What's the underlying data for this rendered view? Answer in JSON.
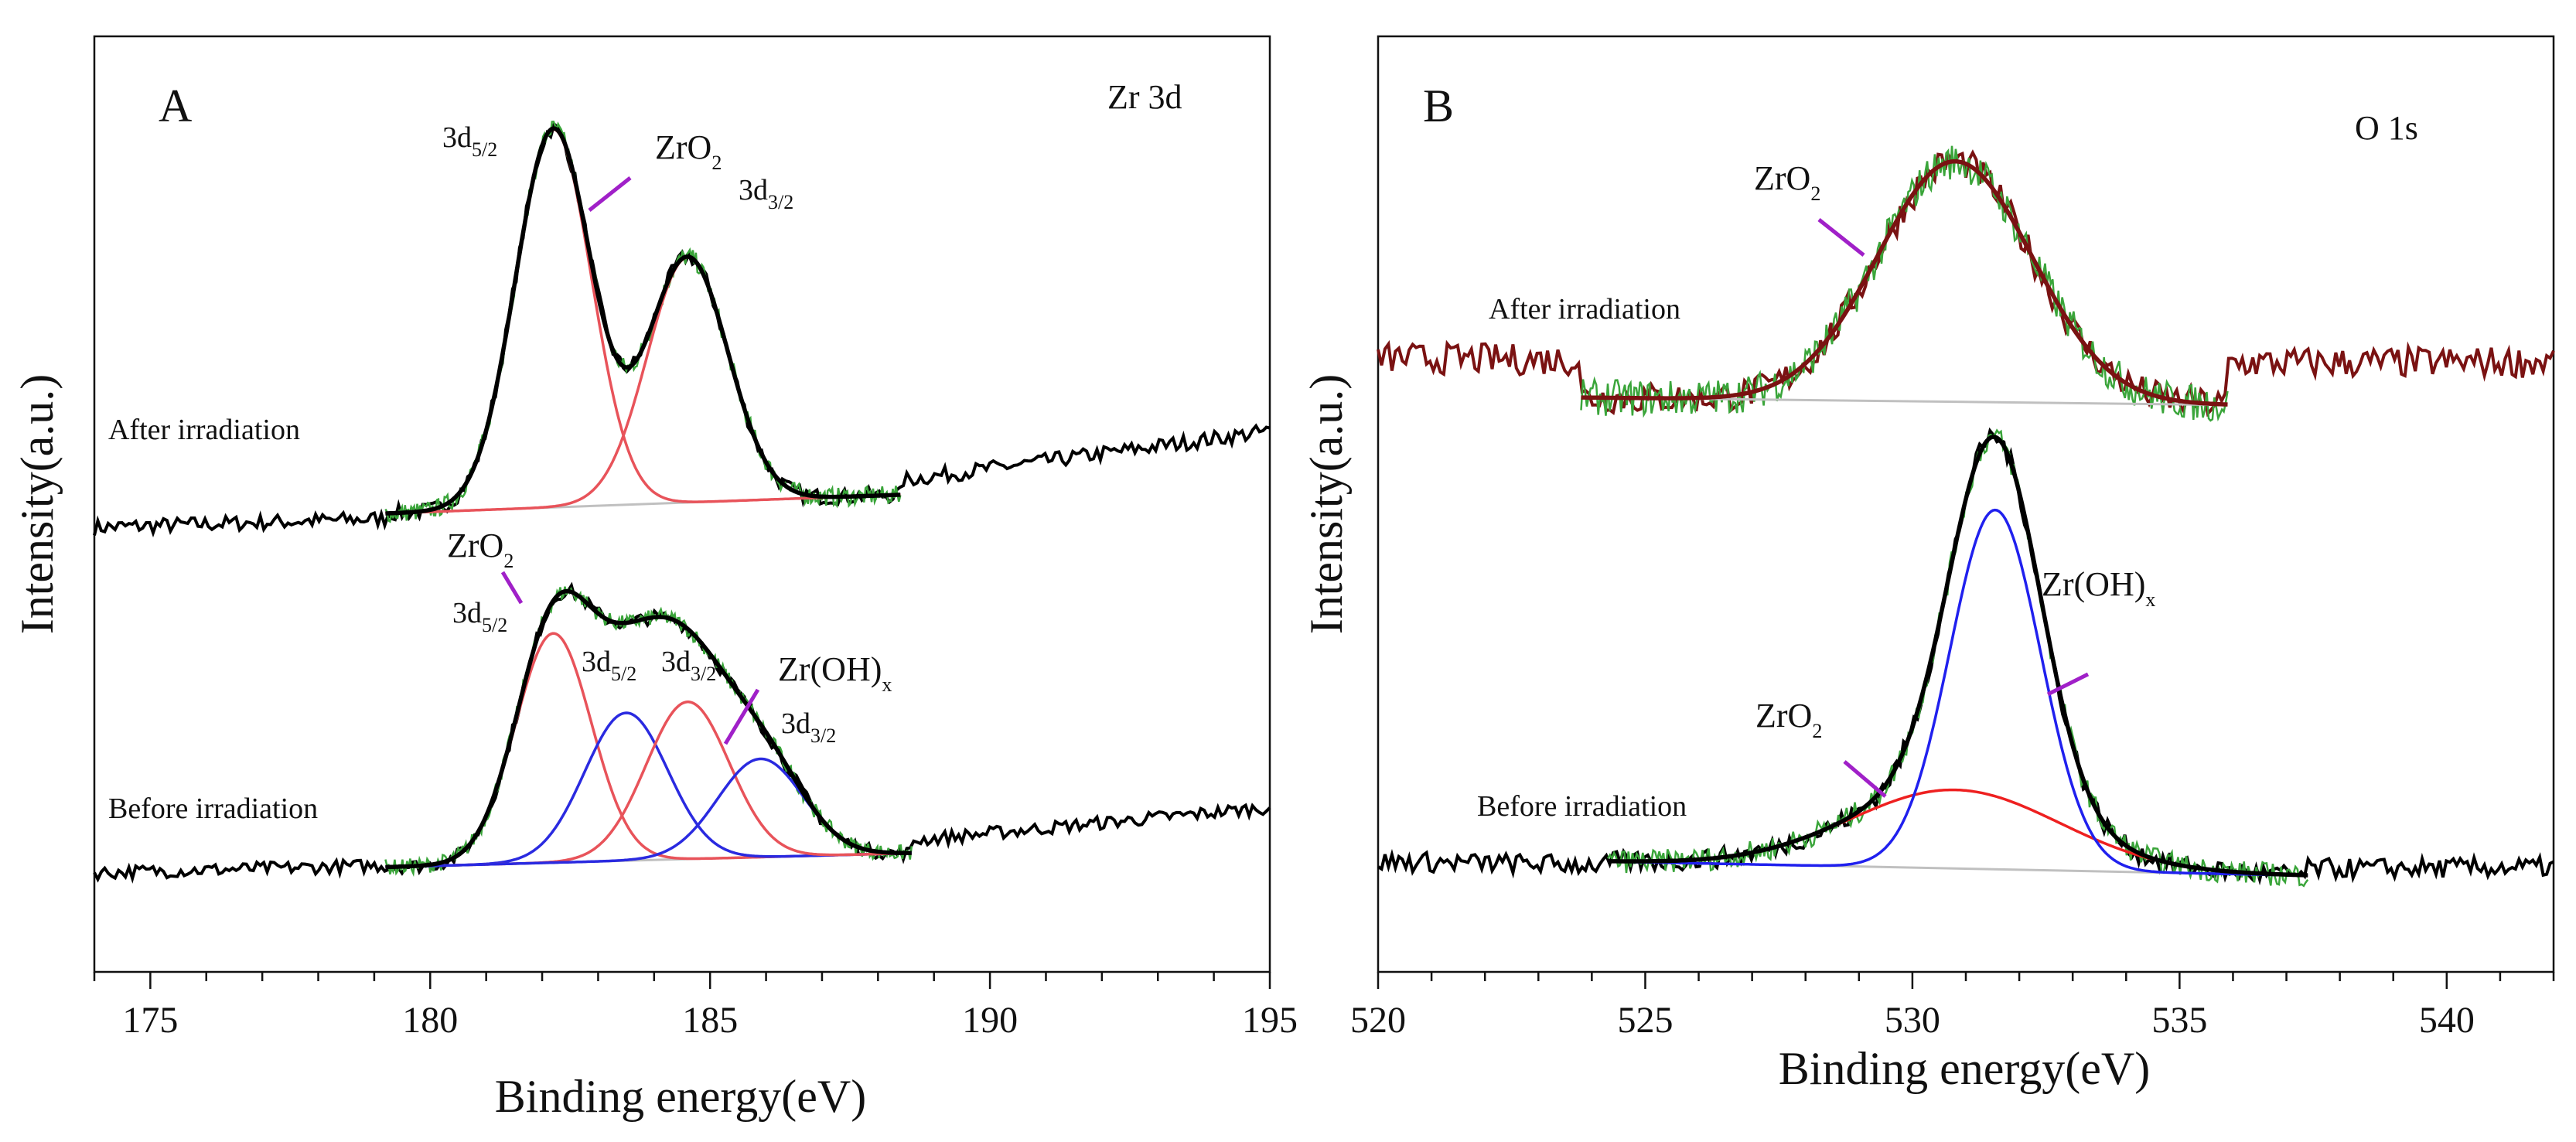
{
  "chart_data": [
    {
      "type": "line",
      "panel_label": "A",
      "title": "Zr 3d",
      "xlabel": "Binding energy(eV)",
      "ylabel": "Intensity(a.u.)",
      "xlim": [
        174,
        195
      ],
      "ylim": [
        0,
        100
      ],
      "xticks": [
        "175",
        "180",
        "185",
        "190",
        "195"
      ],
      "y_ticks_shown": false,
      "spectra": [
        {
          "name": "After irradiation",
          "raw_range": [
            174,
            195
          ],
          "raw_baseline": [
            [
              174,
              47.5
            ],
            [
              180,
              48.6
            ],
            [
              186,
              50.6
            ],
            [
              195,
              57.8
            ]
          ],
          "noise": 0.7,
          "fit_range": [
            179.2,
            188.4
          ],
          "fit_baseline": [
            [
              179.2,
              49.0
            ],
            [
              188.4,
              51.0
            ]
          ],
          "components": [
            {
              "label": "3d5/2",
              "center": 182.2,
              "height": 40.4,
              "fwhm": 1.6,
              "color": "#e8535a"
            },
            {
              "label": "3d3/2",
              "center": 184.6,
              "height": 26.2,
              "fwhm": 1.7,
              "color": "#e8535a"
            }
          ],
          "envelope_color": "#000000",
          "raw_color": "#000000",
          "fit_raw_color": "#3aa53a"
        },
        {
          "name": "Before irradiation",
          "raw_range": [
            174,
            195
          ],
          "raw_baseline": [
            [
              174,
              10.6
            ],
            [
              180,
              11.5
            ],
            [
              186,
              12.6
            ],
            [
              195,
              17.6
            ]
          ],
          "noise": 0.6,
          "fit_range": [
            179.2,
            188.6
          ],
          "fit_baseline": [
            [
              179.2,
              11.2
            ],
            [
              188.6,
              12.7
            ]
          ],
          "components": [
            {
              "label": "ZrO2 3d5/2",
              "center": 182.2,
              "height": 24.5,
              "fwhm": 1.6,
              "color": "#e8535a"
            },
            {
              "label": "Zr(OH)x 3d5/2",
              "center": 183.5,
              "height": 15.8,
              "fwhm": 1.75,
              "color": "#2a2ae0"
            },
            {
              "label": "ZrO2 3d3/2",
              "center": 184.6,
              "height": 16.8,
              "fwhm": 1.75,
              "color": "#e8535a"
            },
            {
              "label": "Zr(OH)x 3d3/2",
              "center": 185.9,
              "height": 10.5,
              "fwhm": 1.8,
              "color": "#2a2ae0"
            }
          ],
          "envelope_color": "#000000",
          "raw_color": "#000000",
          "fit_raw_color": "#3aa53a"
        }
      ],
      "annotations": [
        {
          "species": "ZrO2",
          "sub": "2",
          "peak": "3d",
          "peak_sub": "5/2",
          "peak_sub_after": "3/2",
          "after_species_sub": "2"
        },
        {
          "text": "Zr(OH)",
          "sub": "x"
        }
      ]
    },
    {
      "type": "line",
      "panel_label": "B",
      "title": "O 1s",
      "xlabel": "Binding energy(eV)",
      "ylabel": "Intensity(a.u.)",
      "xlim": [
        520,
        542
      ],
      "ylim": [
        0,
        100
      ],
      "xticks": [
        "520",
        "525",
        "530",
        "535",
        "540"
      ],
      "y_ticks_shown": false,
      "spectra": [
        {
          "name": "After irradiation",
          "raw_range": [
            520,
            542
          ],
          "raw_baseline": [
            [
              520,
              65.6
            ],
            [
              532,
              65.0
            ],
            [
              542,
              65.2
            ]
          ],
          "noise": 1.4,
          "fit_range": [
            523.8,
            535.9
          ],
          "fit_baseline": [
            [
              523.8,
              61.4
            ],
            [
              535.9,
              60.6
            ]
          ],
          "components": [
            {
              "label": "ZrO2",
              "center": 530.8,
              "height": 25.7,
              "fwhm": 3.4,
              "color": "#7a1212"
            }
          ],
          "envelope_color": "#7a1212",
          "raw_color": "#7a1212",
          "fit_raw_color": "#3aa53a"
        },
        {
          "name": "Before irradiation",
          "raw_range": [
            520,
            542
          ],
          "raw_baseline": [
            [
              520,
              11.8
            ],
            [
              532,
              10.8
            ],
            [
              542,
              11.2
            ]
          ],
          "noise": 0.9,
          "fit_range": [
            524.3,
            537.4
          ],
          "fit_baseline": [
            [
              524.3,
              11.8
            ],
            [
              537.4,
              10.3
            ]
          ],
          "components": [
            {
              "label": "ZrO2",
              "center": 530.8,
              "height": 8.4,
              "fwhm": 4.6,
              "color": "#ee2020"
            },
            {
              "label": "Zr(OH)x",
              "center": 531.55,
              "height": 38.4,
              "fwhm": 2.0,
              "color": "#2020ee"
            }
          ],
          "envelope_color": "#000000",
          "raw_color": "#000000",
          "fit_raw_color": "#3aa53a"
        }
      ]
    }
  ],
  "labels": {
    "a_title": "Zr 3d",
    "a_panel": "A",
    "a_after": "After irradiation",
    "a_before": "Before irradiation",
    "a_xlabel": "Binding energy(eV)",
    "a_ylabel": "Intensity(a.u.)",
    "b_title": "O 1s",
    "b_panel": "B",
    "b_after": "After irradiation",
    "b_before": "Before irradiation",
    "b_xlabel": "Binding energy(eV)",
    "b_ylabel": "Intensity(a.u.)",
    "zro": "ZrO",
    "zro_sub": "2",
    "d3": "3d",
    "sub52": "5/2",
    "sub32": "3/2",
    "zroh": "Zr(OH)",
    "zroh_sub": "x"
  },
  "colors": {
    "annotation_line": "#a020c8",
    "residual_baseline": "#c0c0c0"
  }
}
